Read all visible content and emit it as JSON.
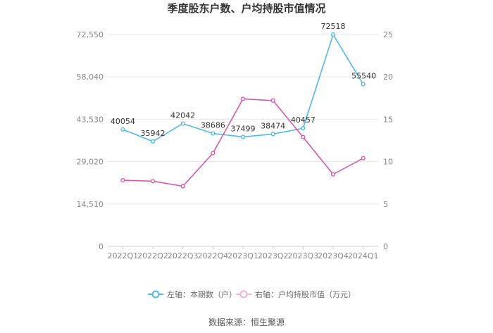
{
  "chart_data": {
    "type": "line",
    "title": "季度股东户数、户均持股市值情况",
    "categories": [
      "2022Q1",
      "2022Q2",
      "2022Q3",
      "2022Q4",
      "2023Q1",
      "2023Q2",
      "2023Q3",
      "2023Q4",
      "2024Q1"
    ],
    "y_left": {
      "ticks": [
        "0",
        "14,510",
        "29,020",
        "43,530",
        "58,040",
        "72,550"
      ],
      "tick_values": [
        0,
        14510,
        29020,
        43530,
        58040,
        72550
      ],
      "range": [
        0,
        72550
      ]
    },
    "y_right": {
      "ticks": [
        "0",
        "5",
        "10",
        "15",
        "20",
        "25"
      ],
      "tick_values": [
        0,
        5,
        10,
        15,
        20,
        25
      ],
      "range": [
        0,
        25
      ]
    },
    "series": [
      {
        "name": "左轴：本期数（户）",
        "axis": "left",
        "color": "#4cb9e8",
        "values": [
          40054,
          35942,
          42042,
          38686,
          37499,
          38474,
          40457,
          72518,
          55540
        ],
        "labels": [
          "40054",
          "35942",
          "42042",
          "38686",
          "37499",
          "38474",
          "40457",
          "72518",
          "55540"
        ]
      },
      {
        "name": "右轴：户均持股市值（万元）",
        "axis": "right",
        "color": "#d65aa8",
        "values": [
          7.8,
          7.7,
          7.1,
          11.0,
          17.4,
          17.2,
          12.9,
          8.5,
          10.4
        ]
      }
    ],
    "grid": true,
    "legend": "bottom"
  },
  "source": "数据来源：恒生聚源"
}
